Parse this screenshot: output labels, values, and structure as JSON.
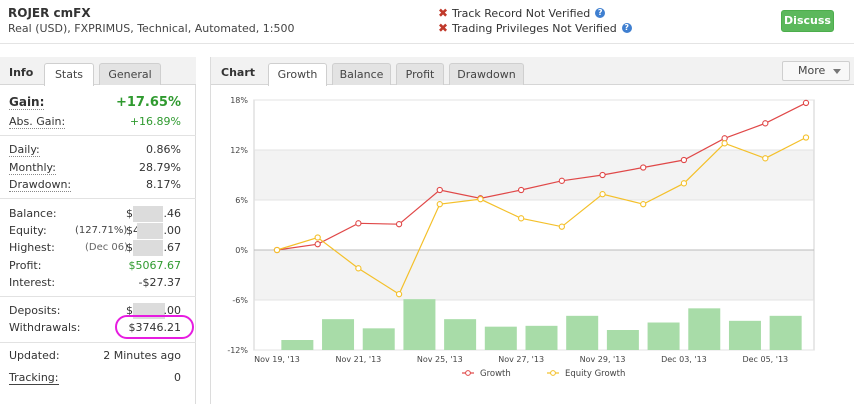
{
  "header": {
    "account_name": "ROJER cmFX",
    "account_desc": "Real (USD), FXPRIMUS, Technical, Automated, 1:500",
    "track_record": "Track Record Not Verified",
    "trading_privileges": "Trading Privileges Not Verified",
    "discuss_label": "Discuss",
    "status_color": "#c0392b",
    "accent_color": "#5cb85c"
  },
  "info": {
    "title": "Info",
    "tabs": [
      "Stats",
      "General"
    ],
    "gain": {
      "label": "Gain:",
      "value": "+17.65%"
    },
    "abs_gain": {
      "label": "Abs. Gain:",
      "value": "+16.89%"
    },
    "daily": {
      "label": "Daily:",
      "value": "0.86%"
    },
    "monthly": {
      "label": "Monthly:",
      "value": "28.79%"
    },
    "drawdown": {
      "label": "Drawdown:",
      "value": "8.17%"
    },
    "balance": {
      "label": "Balance:",
      "value_prefix": "$",
      "value_suffix": ".46"
    },
    "equity": {
      "label": "Equity:",
      "percent": "(127.71%)",
      "value_prefix": "$4",
      "value_suffix": ".00"
    },
    "highest": {
      "label": "Highest:",
      "date": "(Dec 06)",
      "value_prefix": "$",
      "value_suffix": ".67"
    },
    "profit": {
      "label": "Profit:",
      "value": "$5067.67"
    },
    "interest": {
      "label": "Interest:",
      "value": "-$27.37"
    },
    "deposits": {
      "label": "Deposits:",
      "value_prefix": "$",
      "value_suffix": ".00"
    },
    "withdrawals": {
      "label": "Withdrawals:",
      "value": "$3746.21"
    },
    "updated": {
      "label": "Updated:",
      "value": "2 Minutes ago"
    },
    "tracking": {
      "label": "Tracking:",
      "value": "0"
    }
  },
  "chart_panel": {
    "title": "Chart",
    "tabs": [
      "Growth",
      "Balance",
      "Profit",
      "Drawdown"
    ],
    "more_label": "More"
  },
  "chart_data": {
    "type": "line",
    "x": [
      "Nov 19, '13",
      "Nov 20, '13",
      "Nov 21, '13",
      "Nov 22, '13",
      "Nov 25, '13",
      "Nov 26, '13",
      "Nov 27, '13",
      "Nov 28, '13",
      "Nov 29, '13",
      "Nov 30, '13",
      "Dec 03, '13",
      "Dec 04, '13",
      "Dec 05, '13",
      "Dec 06, '13"
    ],
    "x_tick_labels": [
      "Nov 19, '13",
      "Nov 21, '13",
      "Nov 25, '13",
      "Nov 27, '13",
      "Nov 29, '13",
      "Dec 03, '13",
      "Dec 05, '13"
    ],
    "y_tick_labels": [
      "18%",
      "12%",
      "6%",
      "0%",
      "-6%",
      "-12%"
    ],
    "ylim": [
      -12,
      18
    ],
    "series": [
      {
        "name": "Growth",
        "color": "#e04848",
        "values": [
          0,
          0.7,
          3.2,
          3.1,
          7.2,
          6.2,
          7.2,
          8.3,
          9.0,
          9.9,
          10.8,
          13.4,
          15.2,
          17.65
        ]
      },
      {
        "name": "Equity Growth",
        "color": "#f4c02a",
        "values": [
          0,
          1.5,
          -2.2,
          -5.3,
          5.5,
          6.1,
          3.8,
          2.8,
          6.7,
          5.5,
          8.0,
          12.8,
          11.0,
          13.5
        ]
      }
    ],
    "bar_series": {
      "color": "#a8dca8",
      "values": [
        1.2,
        3.7,
        2.6,
        6.1,
        3.7,
        2.8,
        2.9,
        4.1,
        2.4,
        3.3,
        5.0,
        3.5,
        4.1
      ]
    },
    "grid": true,
    "legend_position": "bottom-center"
  }
}
